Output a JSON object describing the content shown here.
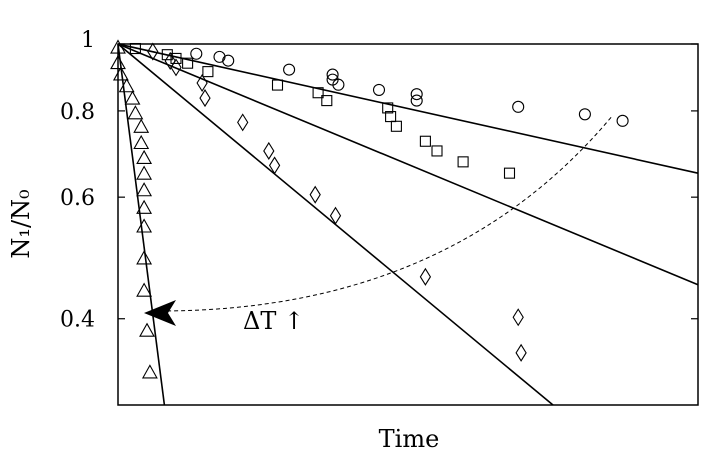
{
  "chart_data": {
    "type": "scatter",
    "xlabel": "Time",
    "ylabel": "N₁/N₀",
    "yscale": "log",
    "xlim": [
      0,
      100
    ],
    "ylim": [
      0.3,
      1.0
    ],
    "yticks": [
      {
        "value": 1.0,
        "label": "1"
      },
      {
        "value": 0.8,
        "label": "0.8"
      },
      {
        "value": 0.6,
        "label": "0.6"
      },
      {
        "value": 0.4,
        "label": "0.4"
      }
    ],
    "grid": false,
    "annotation": {
      "text": "ΔT ↑"
    },
    "series": [
      {
        "marker": "circle",
        "fit_end": [
          100,
          0.65
        ],
        "points": [
          [
            13.5,
            0.968
          ],
          [
            17.5,
            0.958
          ],
          [
            19,
            0.946
          ],
          [
            29.5,
            0.918
          ],
          [
            37,
            0.903
          ],
          [
            37,
            0.888
          ],
          [
            38,
            0.873
          ],
          [
            45,
            0.858
          ],
          [
            51.5,
            0.846
          ],
          [
            51.5,
            0.828
          ],
          [
            69,
            0.811
          ],
          [
            80.5,
            0.791
          ],
          [
            87,
            0.774
          ]
        ]
      },
      {
        "marker": "square",
        "fit_end": [
          100,
          0.448
        ],
        "points": [
          [
            3,
            0.985
          ],
          [
            8.5,
            0.965
          ],
          [
            10,
            0.953
          ],
          [
            12,
            0.938
          ],
          [
            15.5,
            0.912
          ],
          [
            27.5,
            0.872
          ],
          [
            34.5,
            0.85
          ],
          [
            36,
            0.828
          ],
          [
            46.5,
            0.808
          ],
          [
            47,
            0.785
          ],
          [
            48,
            0.76
          ],
          [
            53,
            0.723
          ],
          [
            55,
            0.7
          ],
          [
            59.5,
            0.675
          ],
          [
            67.5,
            0.65
          ]
        ]
      },
      {
        "marker": "diamond",
        "fit_end": [
          75,
          0.3
        ],
        "points": [
          [
            6,
            0.975
          ],
          [
            9,
            0.945
          ],
          [
            10,
            0.925
          ],
          [
            14.5,
            0.878
          ],
          [
            15,
            0.835
          ],
          [
            21.5,
            0.77
          ],
          [
            26,
            0.7
          ],
          [
            27,
            0.667
          ],
          [
            34,
            0.605
          ],
          [
            37.5,
            0.564
          ],
          [
            53,
            0.46
          ],
          [
            69,
            0.402
          ],
          [
            69.5,
            0.357
          ]
        ]
      },
      {
        "marker": "triangle",
        "fit_end": [
          8,
          0.3
        ],
        "points": [
          [
            0,
            0.99
          ],
          [
            0,
            0.94
          ],
          [
            0.5,
            0.905
          ],
          [
            1.5,
            0.87
          ],
          [
            2.5,
            0.835
          ],
          [
            3,
            0.795
          ],
          [
            4,
            0.76
          ],
          [
            4,
            0.72
          ],
          [
            4.5,
            0.685
          ],
          [
            4.5,
            0.65
          ],
          [
            4.5,
            0.615
          ],
          [
            4.5,
            0.58
          ],
          [
            4.5,
            0.545
          ],
          [
            4.5,
            0.49
          ],
          [
            4.5,
            0.44
          ],
          [
            5,
            0.385
          ],
          [
            5.5,
            0.335
          ]
        ]
      }
    ]
  }
}
